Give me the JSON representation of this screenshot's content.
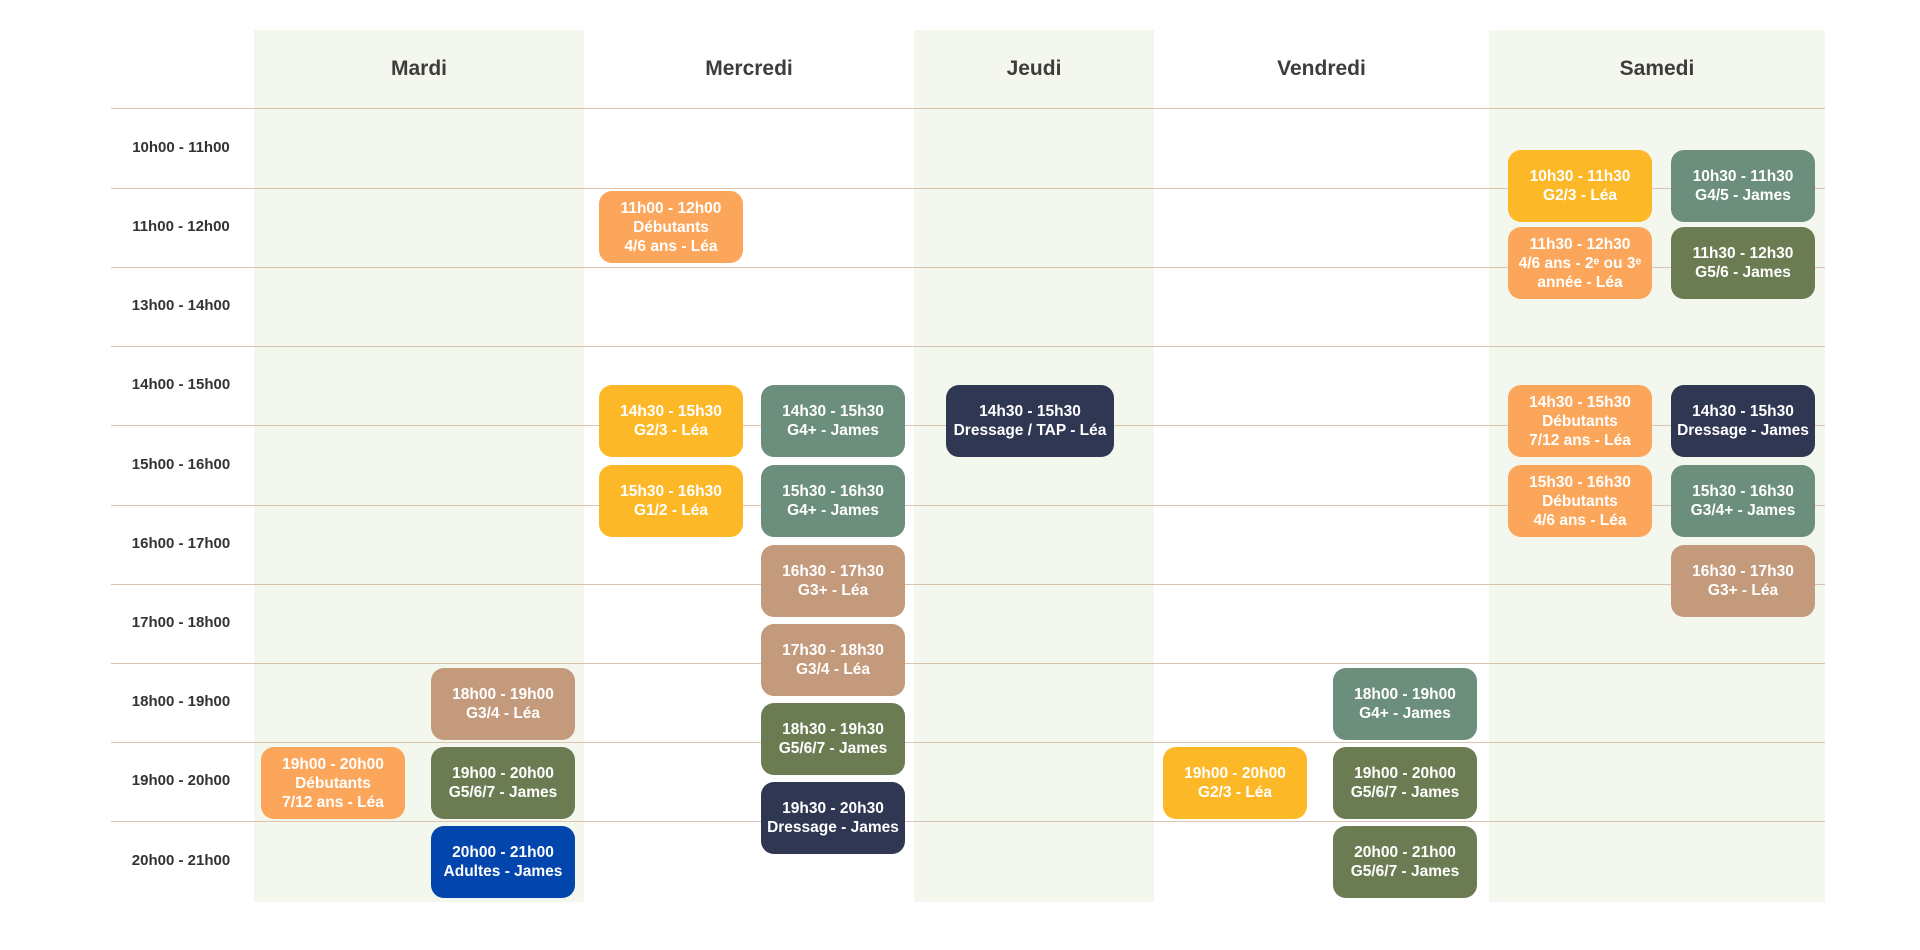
{
  "days": [
    "Mardi",
    "Mercredi",
    "Jeudi",
    "Vendredi",
    "Samedi"
  ],
  "times": [
    "10h00 - 11h00",
    "11h00 - 12h00",
    "13h00 - 14h00",
    "14h00 - 15h00",
    "15h00 - 16h00",
    "16h00 - 17h00",
    "17h00 - 18h00",
    "18h00 - 19h00",
    "19h00 - 20h00",
    "20h00 - 21h00"
  ],
  "colors": {
    "yellow": "#fdb827",
    "orange": "#fba65b",
    "sage": "#6b8e7d",
    "olive": "#6c7c52",
    "navy": "#2f3752",
    "tan": "#c49a7c",
    "blue": "#0245ad",
    "column_shade": "#f4f7ee",
    "grid_line": "#dcc3b0"
  },
  "slots": [
    {
      "day": "Mardi",
      "lines": [
        "18h00 - 19h00",
        "G3/4 - Léa"
      ],
      "color": "tan"
    },
    {
      "day": "Mardi",
      "lines": [
        "19h00 - 20h00",
        "Débutants",
        "7/12 ans - Léa"
      ],
      "color": "orange"
    },
    {
      "day": "Mardi",
      "lines": [
        "19h00 - 20h00",
        "G5/6/7 - James"
      ],
      "color": "olive"
    },
    {
      "day": "Mardi",
      "lines": [
        "20h00 - 21h00",
        "Adultes - James"
      ],
      "color": "blue"
    },
    {
      "day": "Mercredi",
      "lines": [
        "11h00 - 12h00",
        "Débutants",
        "4/6 ans - Léa"
      ],
      "color": "orange"
    },
    {
      "day": "Mercredi",
      "lines": [
        "14h30 - 15h30",
        "G2/3 - Léa"
      ],
      "color": "yellow"
    },
    {
      "day": "Mercredi",
      "lines": [
        "14h30 - 15h30",
        "G4+ - James"
      ],
      "color": "sage"
    },
    {
      "day": "Mercredi",
      "lines": [
        "15h30 - 16h30",
        "G1/2 - Léa"
      ],
      "color": "yellow"
    },
    {
      "day": "Mercredi",
      "lines": [
        "15h30 - 16h30",
        "G4+ - James"
      ],
      "color": "sage"
    },
    {
      "day": "Mercredi",
      "lines": [
        "16h30 - 17h30",
        "G3+ - Léa"
      ],
      "color": "tan"
    },
    {
      "day": "Mercredi",
      "lines": [
        "17h30 - 18h30",
        "G3/4 - Léa"
      ],
      "color": "tan"
    },
    {
      "day": "Mercredi",
      "lines": [
        "18h30 - 19h30",
        "G5/6/7 - James"
      ],
      "color": "olive"
    },
    {
      "day": "Mercredi",
      "lines": [
        "19h30 - 20h30",
        "Dressage - James"
      ],
      "color": "navy"
    },
    {
      "day": "Jeudi",
      "lines": [
        "14h30 - 15h30",
        "Dressage / TAP - Léa"
      ],
      "color": "navy"
    },
    {
      "day": "Vendredi",
      "lines": [
        "18h00 - 19h00",
        "G4+ - James"
      ],
      "color": "sage"
    },
    {
      "day": "Vendredi",
      "lines": [
        "19h00 - 20h00",
        "G2/3 - Léa"
      ],
      "color": "yellow"
    },
    {
      "day": "Vendredi",
      "lines": [
        "19h00 - 20h00",
        "G5/6/7 - James"
      ],
      "color": "olive"
    },
    {
      "day": "Vendredi",
      "lines": [
        "20h00 - 21h00",
        "G5/6/7 - James"
      ],
      "color": "olive"
    },
    {
      "day": "Samedi",
      "lines": [
        "10h30 - 11h30",
        "G2/3 - Léa"
      ],
      "color": "yellow"
    },
    {
      "day": "Samedi",
      "lines": [
        "10h30 - 11h30",
        "G4/5 - James"
      ],
      "color": "sage"
    },
    {
      "day": "Samedi",
      "lines": [
        "11h30 - 12h30",
        "4/6 ans - 2ᵉ ou 3ᵉ année - Léa"
      ],
      "color": "orange"
    },
    {
      "day": "Samedi",
      "lines": [
        "11h30 - 12h30",
        "G5/6 - James"
      ],
      "color": "olive"
    },
    {
      "day": "Samedi",
      "lines": [
        "14h30 - 15h30",
        "Débutants",
        "7/12 ans - Léa"
      ],
      "color": "orange"
    },
    {
      "day": "Samedi",
      "lines": [
        "14h30 - 15h30",
        "Dressage - James"
      ],
      "color": "navy"
    },
    {
      "day": "Samedi",
      "lines": [
        "15h30 - 16h30",
        "Débutants",
        "4/6 ans - Léa"
      ],
      "color": "orange"
    },
    {
      "day": "Samedi",
      "lines": [
        "15h30 - 16h30",
        "G3/4+ - James"
      ],
      "color": "sage"
    },
    {
      "day": "Samedi",
      "lines": [
        "16h30 - 17h30",
        "G3+ - Léa"
      ],
      "color": "tan"
    }
  ]
}
